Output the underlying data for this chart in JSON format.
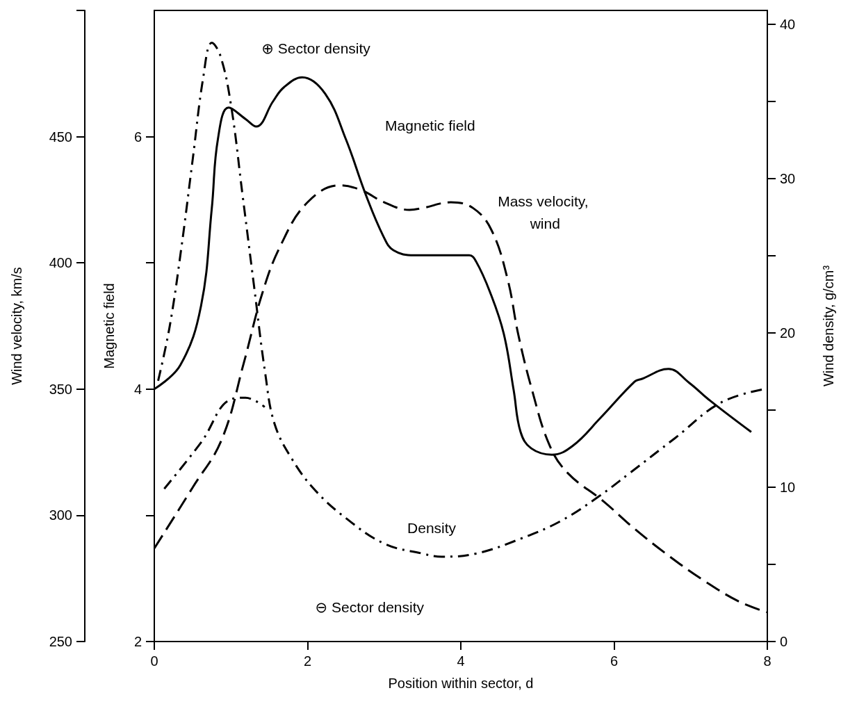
{
  "chart_data": {
    "type": "line",
    "xlabel": "Position within sector, d",
    "ylabel": "Magnetic field",
    "y2label": "Wind density, g/cm³",
    "y3label": "Wind velocity, km/s",
    "xlim": [
      0,
      8
    ],
    "xticks": [
      0,
      2,
      4,
      6,
      8
    ],
    "ylim": [
      2,
      7
    ],
    "yticks": [
      2,
      {
        "value": 3,
        "label": null
      },
      4,
      {
        "value": 5,
        "label": null
      },
      6
    ],
    "y2lim": [
      0,
      40.9
    ],
    "y2ticks": [
      0,
      {
        "value": 5,
        "label": null
      },
      10,
      {
        "value": 15,
        "label": null
      },
      20,
      {
        "value": 25,
        "label": null
      },
      30,
      {
        "value": 35,
        "label": null
      },
      40
    ],
    "y3lim": [
      250,
      500
    ],
    "y3ticks": [
      250,
      300,
      350,
      400,
      450,
      {
        "value": 500,
        "label": null
      }
    ],
    "grid": false,
    "legend": false,
    "marker": "none",
    "annotations": [
      "⊕ Sector density",
      "⊖ Sector density"
    ],
    "series": [
      {
        "name": "Magnetic field",
        "color": "#000000",
        "line_style": "solid",
        "axis": "y",
        "x": [
          0,
          0.34,
          0.61,
          0.75,
          0.83,
          0.97,
          1.19,
          1.33,
          1.55,
          1.69,
          1.93,
          2.23,
          2.5,
          2.76,
          2.99,
          3.12,
          3.39,
          4.11,
          4.2,
          4.38,
          4.56,
          4.69,
          4.78,
          4.92,
          5.19,
          5.46,
          5.82,
          6.27,
          6.36,
          6.71,
          6.98,
          7.25,
          7.79
        ],
        "values": [
          4.0,
          4.19,
          4.66,
          5.43,
          5.98,
          6.23,
          6.14,
          6.08,
          6.28,
          6.39,
          6.47,
          6.34,
          5.98,
          5.54,
          5.21,
          5.1,
          5.06,
          5.06,
          5.01,
          4.77,
          4.44,
          3.99,
          3.66,
          3.53,
          3.48,
          3.55,
          3.77,
          4.06,
          4.08,
          4.16,
          4.05,
          3.91,
          3.66
        ]
      },
      {
        "name": "Mass velocity, wind",
        "color": "#000000",
        "line_style": "dashed",
        "axis": "y3",
        "x": [
          0,
          0.5,
          0.88,
          1.17,
          1.41,
          1.65,
          2.0,
          2.42,
          2.7,
          3.0,
          3.33,
          3.5,
          3.87,
          4.16,
          4.4,
          4.61,
          4.75,
          4.93,
          5.16,
          5.4,
          5.86,
          6.27,
          6.73,
          7.18,
          7.64,
          8
        ],
        "values": [
          286.9,
          311,
          330,
          360.6,
          388,
          407,
          424,
          430.7,
          428.8,
          424,
          421,
          421.7,
          424,
          421.7,
          413,
          393.6,
          371.6,
          349.6,
          327.6,
          316.6,
          305.6,
          294.6,
          283.6,
          274,
          265.7,
          261.6
        ]
      },
      {
        "name": "Density",
        "color": "#000000",
        "line_style": "dashdot",
        "axis": "y2",
        "x": [
          0.05,
          0.2,
          0.35,
          0.5,
          0.64,
          0.75,
          0.86,
          1.0,
          1.15,
          1.3,
          1.45,
          1.57,
          1.8,
          2.1,
          2.5,
          3.0,
          3.5,
          3.75,
          4.2,
          4.8,
          5.3,
          5.8,
          6.2,
          6.8,
          7.4,
          8
        ],
        "values": [
          16.9,
          20.4,
          25.4,
          31.2,
          36.6,
          38.8,
          38.0,
          34.8,
          29.0,
          23.1,
          17.3,
          14.1,
          11.8,
          9.8,
          8.0,
          6.35,
          5.7,
          5.5,
          5.7,
          6.7,
          7.8,
          9.4,
          10.9,
          13.2,
          15.5,
          16.4
        ]
      },
      {
        "color": "#000000",
        "line_style": "dashdot",
        "axis": "y2",
        "x": [
          0.13,
          0.61,
          1.0,
          1.19,
          1.44
        ],
        "values": [
          9.9,
          12.9,
          15.7,
          15.8,
          15.2
        ]
      }
    ]
  }
}
